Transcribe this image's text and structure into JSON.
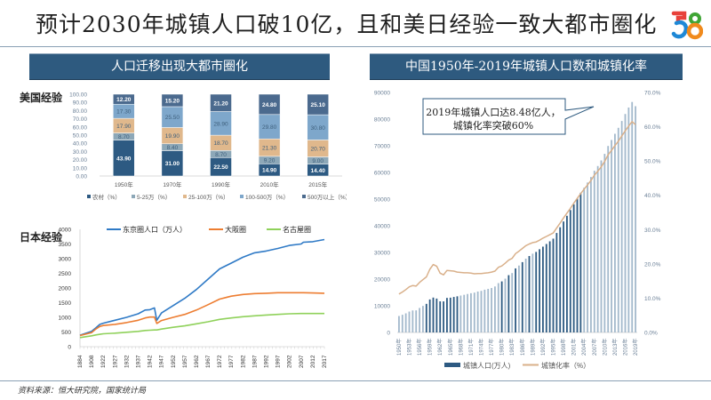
{
  "header": {
    "title": "预计2030年城镇人口破10亿，且和美日经验一致大都市圈化",
    "logo_text": "58",
    "logo_colors": {
      "five_top": "#e8413a",
      "five_bottom": "#1e88d6",
      "eight_top": "#3fa535",
      "eight_bottom": "#f08a1c"
    }
  },
  "left_panel": {
    "banner": "人口迁移出现大都市圈化",
    "us_label": "美国经验",
    "japan_label": "日本经验"
  },
  "right_panel": {
    "banner": "中国1950年-2019年城镇人口数和城镇化率",
    "callout_line1": "2019年城镇人口达8.48亿人，",
    "callout_line2": "城镇化率突破60%"
  },
  "footer": {
    "source": "资料来源：恒大研究院，国家统计局"
  },
  "colors": {
    "banner_bg": "#2e5a7f",
    "rural": "#2d5a82",
    "small_5_25": "#8da8b8",
    "mid_25_100": "#e0b88c",
    "large_100_500": "#7ea7cb",
    "mega_500": "#4b6a8e",
    "tokyo": "#2f7ac6",
    "osaka": "#ed7d31",
    "nagoya": "#8fd15a",
    "china_bar_dark": "#2d5a82",
    "china_bar_light": "#a3b9cc",
    "china_rate": "#d9b08a"
  },
  "chart_data": [
    {
      "id": "us-stacked",
      "type": "bar",
      "stacked": true,
      "title": "美国经验",
      "categories": [
        "1950年",
        "1970年",
        "1990年",
        "2010年",
        "2015年"
      ],
      "ylim": [
        0,
        100
      ],
      "yticks": [
        "0.00",
        "10.00",
        "20.00",
        "30.00",
        "40.00",
        "50.00",
        "60.00",
        "70.00",
        "80.00",
        "90.00",
        "100.00"
      ],
      "series": [
        {
          "name": "农村（%）",
          "values": [
            43.9,
            31.0,
            22.5,
            14.9,
            14.4
          ],
          "labels": [
            "43.90",
            "31.00",
            "22.50",
            "14.90",
            "14.40"
          ]
        },
        {
          "name": "5-25万（%）",
          "values": [
            8.7,
            8.4,
            8.7,
            9.2,
            9.0
          ],
          "labels": [
            "8.70",
            "8.40",
            "8.70",
            "9.20",
            "9.00"
          ]
        },
        {
          "name": "25-100万（%）",
          "values": [
            17.9,
            19.9,
            18.7,
            21.3,
            20.7
          ],
          "labels": [
            "17.90",
            "19.90",
            "18.70",
            "21.30",
            "20.70"
          ]
        },
        {
          "name": "100-500万（%）",
          "values": [
            17.3,
            25.5,
            28.9,
            29.8,
            30.8
          ],
          "labels": [
            "17.30",
            "25.50",
            "28.90",
            "29.80",
            "30.80"
          ]
        },
        {
          "name": "500万以上（%）",
          "values": [
            12.2,
            15.2,
            21.2,
            24.8,
            25.1
          ],
          "labels": [
            "12.20",
            "15.20",
            "21.20",
            "24.80",
            "25.10"
          ]
        }
      ],
      "legend_position": "bottom"
    },
    {
      "id": "japan-lines",
      "type": "line",
      "title": "日本经验",
      "xlabel": "",
      "ylabel": "",
      "ylim": [
        0,
        4000
      ],
      "yticks": [
        "0",
        "500",
        "1000",
        "1500",
        "2000",
        "2500",
        "3000",
        "3500",
        "4000"
      ],
      "xticks": [
        "1884",
        "1908",
        "1922",
        "1927",
        "1932",
        "1937",
        "1942",
        "1947",
        "1952",
        "1957",
        "1962",
        "1967",
        "1972",
        "1977",
        "1982",
        "1987",
        "1992",
        "1997",
        "2002",
        "2007",
        "2012",
        "2017"
      ],
      "x": [
        1884,
        1908,
        1913,
        1918,
        1922,
        1927,
        1932,
        1937,
        1940,
        1942,
        1944,
        1945,
        1947,
        1952,
        1957,
        1962,
        1967,
        1972,
        1977,
        1982,
        1987,
        1992,
        1997,
        2002,
        2007,
        2008,
        2012,
        2017
      ],
      "series": [
        {
          "name": "东京圈人口（万人）",
          "values": [
            390,
            520,
            640,
            760,
            800,
            900,
            1000,
            1120,
            1250,
            1260,
            1320,
            900,
            1150,
            1400,
            1650,
            1950,
            2300,
            2650,
            2850,
            3050,
            3200,
            3260,
            3350,
            3450,
            3500,
            3560,
            3580,
            3650
          ]
        },
        {
          "name": "大阪圈",
          "values": [
            380,
            480,
            600,
            690,
            720,
            760,
            820,
            900,
            980,
            1010,
            1010,
            790,
            890,
            1000,
            1100,
            1250,
            1430,
            1620,
            1720,
            1780,
            1810,
            1820,
            1840,
            1840,
            1840,
            1840,
            1830,
            1820
          ]
        },
        {
          "name": "名古屋圈",
          "values": [
            310,
            370,
            400,
            420,
            440,
            460,
            490,
            520,
            550,
            560,
            570,
            570,
            600,
            660,
            710,
            780,
            850,
            930,
            980,
            1020,
            1050,
            1080,
            1100,
            1120,
            1130,
            1130,
            1130,
            1130
          ]
        }
      ],
      "legend_position": "top"
    },
    {
      "id": "china-urban",
      "type": "bar",
      "title": "中国1950年-2019年城镇人口数和城镇化率",
      "xticks": [
        "1950年",
        "1953年",
        "1956年",
        "1959年",
        "1962年",
        "1965年",
        "1968年",
        "1971年",
        "1974年",
        "1977年",
        "1980年",
        "1983年",
        "1986年",
        "1989年",
        "1992年",
        "1995年",
        "1998年",
        "2001年",
        "2004年",
        "2007年",
        "2010年",
        "2013年",
        "2016年",
        "2019年"
      ],
      "years_start": 1950,
      "years_end": 2019,
      "ylim": [
        0,
        90000
      ],
      "yticks": [
        "0",
        "10000",
        "20000",
        "30000",
        "40000",
        "50000",
        "60000",
        "70000",
        "80000",
        "90000"
      ],
      "y2lim": [
        0,
        70
      ],
      "y2ticks": [
        "0.0%",
        "10.0%",
        "20.0%",
        "30.0%",
        "40.0%",
        "50.0%",
        "60.0%",
        "70.0%"
      ],
      "series": [
        {
          "name": "城镇人口(万人)",
          "axis": "left",
          "kind": "bar",
          "values": [
            6169,
            6632,
            7163,
            7826,
            8249,
            8285,
            9185,
            9949,
            10721,
            12371,
            13073,
            12707,
            11659,
            11646,
            12950,
            13045,
            13313,
            13548,
            13838,
            14117,
            14424,
            14711,
            14935,
            15345,
            15595,
            16030,
            16341,
            16669,
            17245,
            18495,
            19140,
            20171,
            21480,
            22274,
            24017,
            25094,
            26366,
            27674,
            28661,
            29540,
            30195,
            31203,
            32175,
            33173,
            34169,
            35174,
            37304,
            39449,
            41608,
            43748,
            45906,
            48064,
            50212,
            52376,
            54283,
            56212,
            58288,
            60633,
            62403,
            64512,
            66978,
            69927,
            72175,
            74502,
            76738,
            79302,
            81924,
            84343,
            86433,
            84843
          ]
        },
        {
          "name": "城镇化率（%）",
          "axis": "right",
          "kind": "line",
          "values": [
            11.2,
            11.8,
            12.5,
            13.3,
            13.7,
            13.5,
            14.6,
            15.4,
            16.2,
            18.4,
            19.8,
            19.3,
            17.3,
            16.8,
            18.1,
            18.0,
            17.9,
            17.6,
            17.5,
            17.4,
            17.4,
            17.3,
            17.1,
            17.2,
            17.2,
            17.3,
            17.4,
            17.6,
            17.9,
            19.0,
            19.4,
            20.2,
            21.1,
            21.6,
            23.0,
            23.7,
            24.5,
            25.3,
            25.8,
            26.2,
            26.4,
            26.9,
            27.5,
            28.0,
            28.5,
            29.0,
            30.5,
            31.9,
            33.4,
            34.8,
            36.2,
            37.7,
            39.1,
            40.5,
            41.8,
            43.0,
            44.3,
            45.9,
            47.0,
            48.3,
            49.9,
            51.8,
            53.1,
            54.5,
            55.8,
            57.3,
            58.8,
            60.2,
            61.5,
            60.6
          ]
        }
      ],
      "legend": [
        "城镇人口(万人)",
        "城镇化率（%）"
      ],
      "legend_position": "bottom"
    }
  ]
}
